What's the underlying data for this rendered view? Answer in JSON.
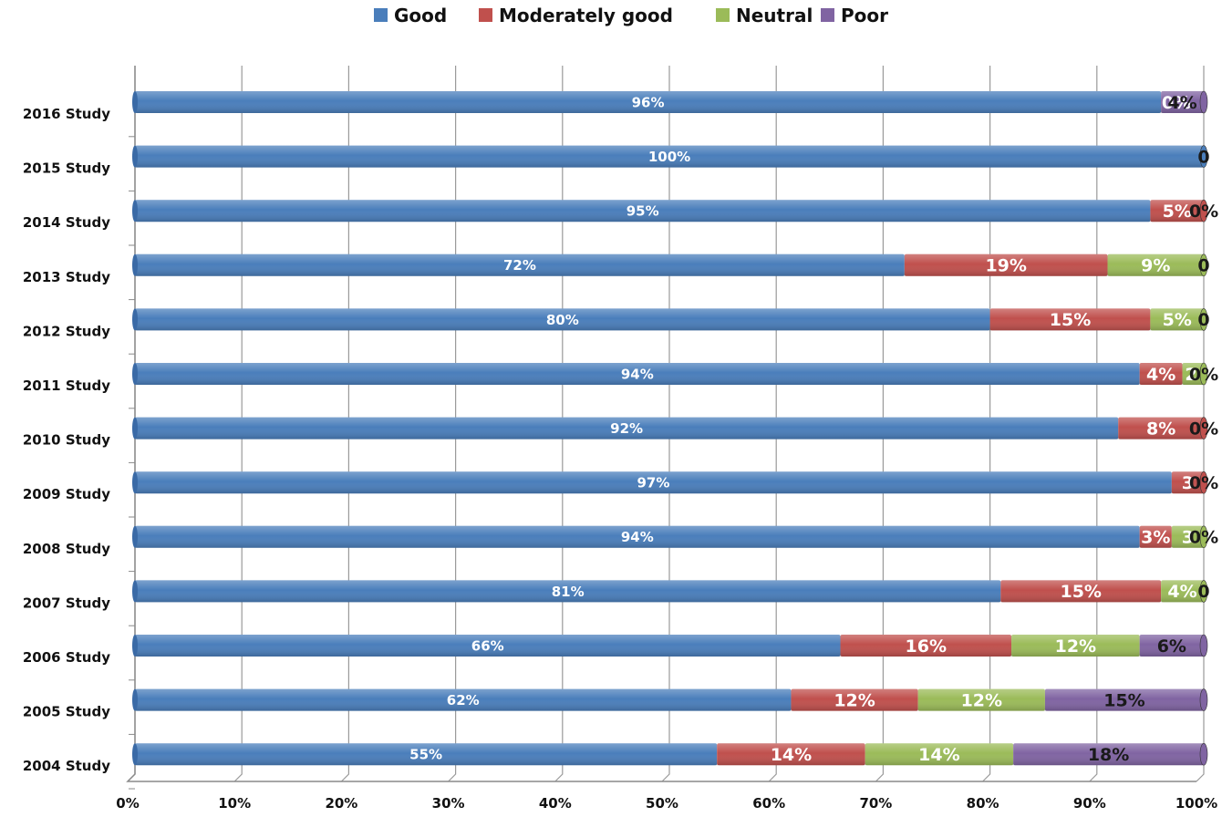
{
  "chart_data": {
    "type": "bar",
    "orientation": "horizontal",
    "stacked": "percent",
    "title": "",
    "xlabel": "",
    "ylabel": "",
    "xlim": [
      0,
      100
    ],
    "x_ticks": [
      "0%",
      "10%",
      "20%",
      "30%",
      "40%",
      "50%",
      "60%",
      "70%",
      "80%",
      "90%",
      "100%"
    ],
    "grid": true,
    "legend_position": "top",
    "categories": [
      "2016 Study",
      "2015 Study",
      "2014 Study",
      "2013 Study",
      "2012 Study",
      "2011 Study",
      "2010 Study",
      "2009 Study",
      "2008 Study",
      "2007 Study",
      "2006 Study",
      "2005 Study",
      "2004 Study"
    ],
    "series": [
      {
        "name": "Good",
        "color": "#4a7ebb",
        "values": [
          96,
          100,
          95,
          72,
          80,
          94,
          92,
          97,
          94,
          81,
          66,
          62,
          55
        ],
        "labels": [
          "96%",
          "100%",
          "95%",
          "72%",
          "80%",
          "94%",
          "92%",
          "97%",
          "94%",
          "81%",
          "66%",
          "62%",
          "55%"
        ]
      },
      {
        "name": "Moderately good",
        "color": "#c0504d",
        "values": [
          0,
          0,
          5,
          19,
          15,
          4,
          8,
          3,
          3,
          15,
          16,
          12,
          14
        ],
        "labels": [
          "0%",
          "",
          "5%",
          "19%",
          "15%",
          "4%",
          "8%",
          "3",
          "3%",
          "15%",
          "16%",
          "12%",
          "14%"
        ]
      },
      {
        "name": "Neutral",
        "color": "#9bbb59",
        "values": [
          0,
          0,
          0,
          9,
          5,
          2,
          0,
          0,
          3,
          4,
          12,
          12,
          14
        ],
        "labels": [
          "",
          "",
          "",
          "9%",
          "5%",
          "2",
          "",
          "",
          "3",
          "4%",
          "12%",
          "12%",
          "14%"
        ]
      },
      {
        "name": "Poor",
        "color": "#8064a2",
        "values": [
          4,
          0,
          0,
          0,
          0,
          0,
          0,
          0,
          0,
          0,
          6,
          15,
          18
        ],
        "labels": [
          "4%",
          "0",
          "0%",
          "0",
          "0",
          "0%",
          "0%",
          "0%",
          "0%",
          "0",
          "6%",
          "15%",
          "18%"
        ]
      }
    ]
  }
}
